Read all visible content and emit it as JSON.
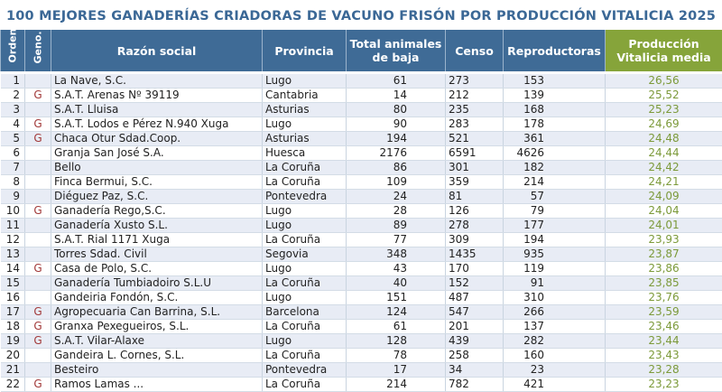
{
  "title": "100 MEJORES GANADERÍAS CRIADORAS DE VACUNO FRISÓN POR PRODUCCIÓN VITALICIA 2025",
  "colors": {
    "title": "#3b6896",
    "header_blue": "#3f6b96",
    "header_green": "#86a43a",
    "row_stripe": "#e8ecf5",
    "geno_mark": "#a23a3a",
    "production_value": "#7c9a3a"
  },
  "columns": {
    "orden": "Orden",
    "geno": "Geno.",
    "razon_social": "Razón social",
    "provincia": "Provincia",
    "total_line1": "Total animales",
    "total_line2": "de baja",
    "censo": "Censo",
    "reproductoras": "Reproductoras",
    "prod_line1": "Producción",
    "prod_line2": "Vitalicia media"
  },
  "rows": [
    {
      "orden": "1",
      "geno": "",
      "razon": "La Nave, S.C.",
      "provincia": "Lugo",
      "total": "61",
      "censo": "273",
      "repro": "153",
      "prod": "26,56"
    },
    {
      "orden": "2",
      "geno": "G",
      "razon": "S.A.T. Arenas Nº 39119",
      "provincia": "Cantabria",
      "total": "14",
      "censo": "212",
      "repro": "139",
      "prod": "25,52"
    },
    {
      "orden": "3",
      "geno": "",
      "razon": "S.A.T. Lluisa",
      "provincia": "Asturias",
      "total": "80",
      "censo": "235",
      "repro": "168",
      "prod": "25,23"
    },
    {
      "orden": "4",
      "geno": "G",
      "razon": "S.A.T. Lodos e Pérez N.940 Xuga",
      "provincia": "Lugo",
      "total": "90",
      "censo": "283",
      "repro": "178",
      "prod": "24,69"
    },
    {
      "orden": "5",
      "geno": "G",
      "razon": "Chaca Otur Sdad.Coop.",
      "provincia": "Asturias",
      "total": "194",
      "censo": "521",
      "repro": "361",
      "prod": "24,48"
    },
    {
      "orden": "6",
      "geno": "",
      "razon": "Granja San José S.A.",
      "provincia": "Huesca",
      "total": "2176",
      "censo": "6591",
      "repro": "4626",
      "prod": "24,44"
    },
    {
      "orden": "7",
      "geno": "",
      "razon": "Bello",
      "provincia": "La Coruña",
      "total": "86",
      "censo": "301",
      "repro": "182",
      "prod": "24,42"
    },
    {
      "orden": "8",
      "geno": "",
      "razon": "Finca Bermui, S.C.",
      "provincia": "La Coruña",
      "total": "109",
      "censo": "359",
      "repro": "214",
      "prod": "24,21"
    },
    {
      "orden": "9",
      "geno": "",
      "razon": "Diéguez Paz, S.C.",
      "provincia": "Pontevedra",
      "total": "24",
      "censo": "81",
      "repro": "57",
      "prod": "24,09"
    },
    {
      "orden": "10",
      "geno": "G",
      "razon": "Ganadería Rego,S.C.",
      "provincia": "Lugo",
      "total": "28",
      "censo": "126",
      "repro": "79",
      "prod": "24,04"
    },
    {
      "orden": "11",
      "geno": "",
      "razon": "Ganadería Xusto S.L.",
      "provincia": "Lugo",
      "total": "89",
      "censo": "278",
      "repro": "177",
      "prod": "24,01"
    },
    {
      "orden": "12",
      "geno": "",
      "razon": "S.A.T. Rial 1171 Xuga",
      "provincia": "La Coruña",
      "total": "77",
      "censo": "309",
      "repro": "194",
      "prod": "23,93"
    },
    {
      "orden": "13",
      "geno": "",
      "razon": "Torres Sdad. Civil",
      "provincia": "Segovia",
      "total": "348",
      "censo": "1435",
      "repro": "935",
      "prod": "23,87"
    },
    {
      "orden": "14",
      "geno": "G",
      "razon": "Casa de Polo, S.C.",
      "provincia": "Lugo",
      "total": "43",
      "censo": "170",
      "repro": "119",
      "prod": "23,86"
    },
    {
      "orden": "15",
      "geno": "",
      "razon": "Ganadería Tumbiadoiro S.L.U",
      "provincia": "La Coruña",
      "total": "40",
      "censo": "152",
      "repro": "91",
      "prod": "23,85"
    },
    {
      "orden": "16",
      "geno": "",
      "razon": "Gandeiria Fondón, S.C.",
      "provincia": "Lugo",
      "total": "151",
      "censo": "487",
      "repro": "310",
      "prod": "23,76"
    },
    {
      "orden": "17",
      "geno": "G",
      "razon": "Agropecuaria Can Barrina, S.L.",
      "provincia": "Barcelona",
      "total": "124",
      "censo": "547",
      "repro": "266",
      "prod": "23,59"
    },
    {
      "orden": "18",
      "geno": "G",
      "razon": "Granxa Pexegueiros, S.L.",
      "provincia": "La Coruña",
      "total": "61",
      "censo": "201",
      "repro": "137",
      "prod": "23,46"
    },
    {
      "orden": "19",
      "geno": "G",
      "razon": "S.A.T. Vilar-Alaxe",
      "provincia": "Lugo",
      "total": "128",
      "censo": "439",
      "repro": "282",
      "prod": "23,44"
    },
    {
      "orden": "20",
      "geno": "",
      "razon": "Gandeira L. Cornes, S.L.",
      "provincia": "La Coruña",
      "total": "78",
      "censo": "258",
      "repro": "160",
      "prod": "23,43"
    },
    {
      "orden": "21",
      "geno": "",
      "razon": "Besteiro",
      "provincia": "Pontevedra",
      "total": "17",
      "censo": "34",
      "repro": "23",
      "prod": "23,28"
    },
    {
      "orden": "22",
      "geno": "G",
      "razon": "Ramos Lamas ...",
      "provincia": "La Coruña",
      "total": "214",
      "censo": "782",
      "repro": "421",
      "prod": "23,23"
    }
  ]
}
